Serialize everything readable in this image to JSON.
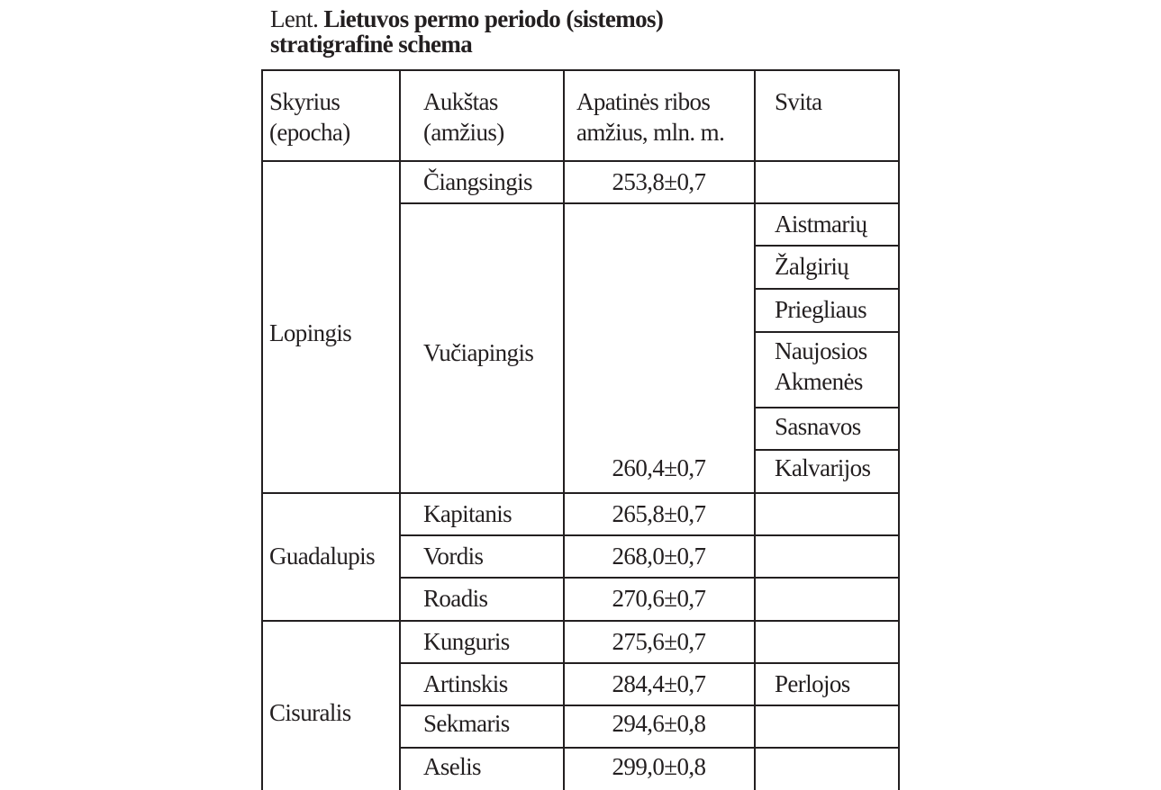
{
  "title": {
    "prefix": "Lent.",
    "bold_line1": "Lietuvos permo  periodo (sistemos)",
    "bold_line2": "stratigrafinė schema"
  },
  "headers": {
    "skyrius": [
      "Skyrius",
      "(epocha)"
    ],
    "aukstas": [
      "Aukštas",
      "(amžius)"
    ],
    "amzius": [
      "Apatinės ribos",
      "amžius, mln. m."
    ],
    "svita": "Svita"
  },
  "epochs": [
    "Lopingis",
    "Guadalupis",
    "Cisuralis"
  ],
  "stages": [
    {
      "name": "Čiangsingis",
      "age": "253,8±0,7"
    },
    {
      "name": "Vučiapingis",
      "age": "260,4±0,7"
    },
    {
      "name": "Kapitanis",
      "age": "265,8±0,7"
    },
    {
      "name": "Vordis",
      "age": "268,0±0,7"
    },
    {
      "name": "Roadis",
      "age": "270,6±0,7"
    },
    {
      "name": "Kunguris",
      "age": "275,6±0,7"
    },
    {
      "name": "Artinskis",
      "age": "284,4±0,7"
    },
    {
      "name": "Sekmaris",
      "age": "294,6±0,8"
    },
    {
      "name": "Aselis",
      "age": "299,0±0,8"
    }
  ],
  "svitos": {
    "vuciapingis": [
      "Aistmarių",
      "Žalgirių",
      "Priegliaus",
      "Naujosios",
      "Akmenės",
      "Sasnavos",
      "Kalvarijos"
    ],
    "artinskis": "Perlojos"
  }
}
